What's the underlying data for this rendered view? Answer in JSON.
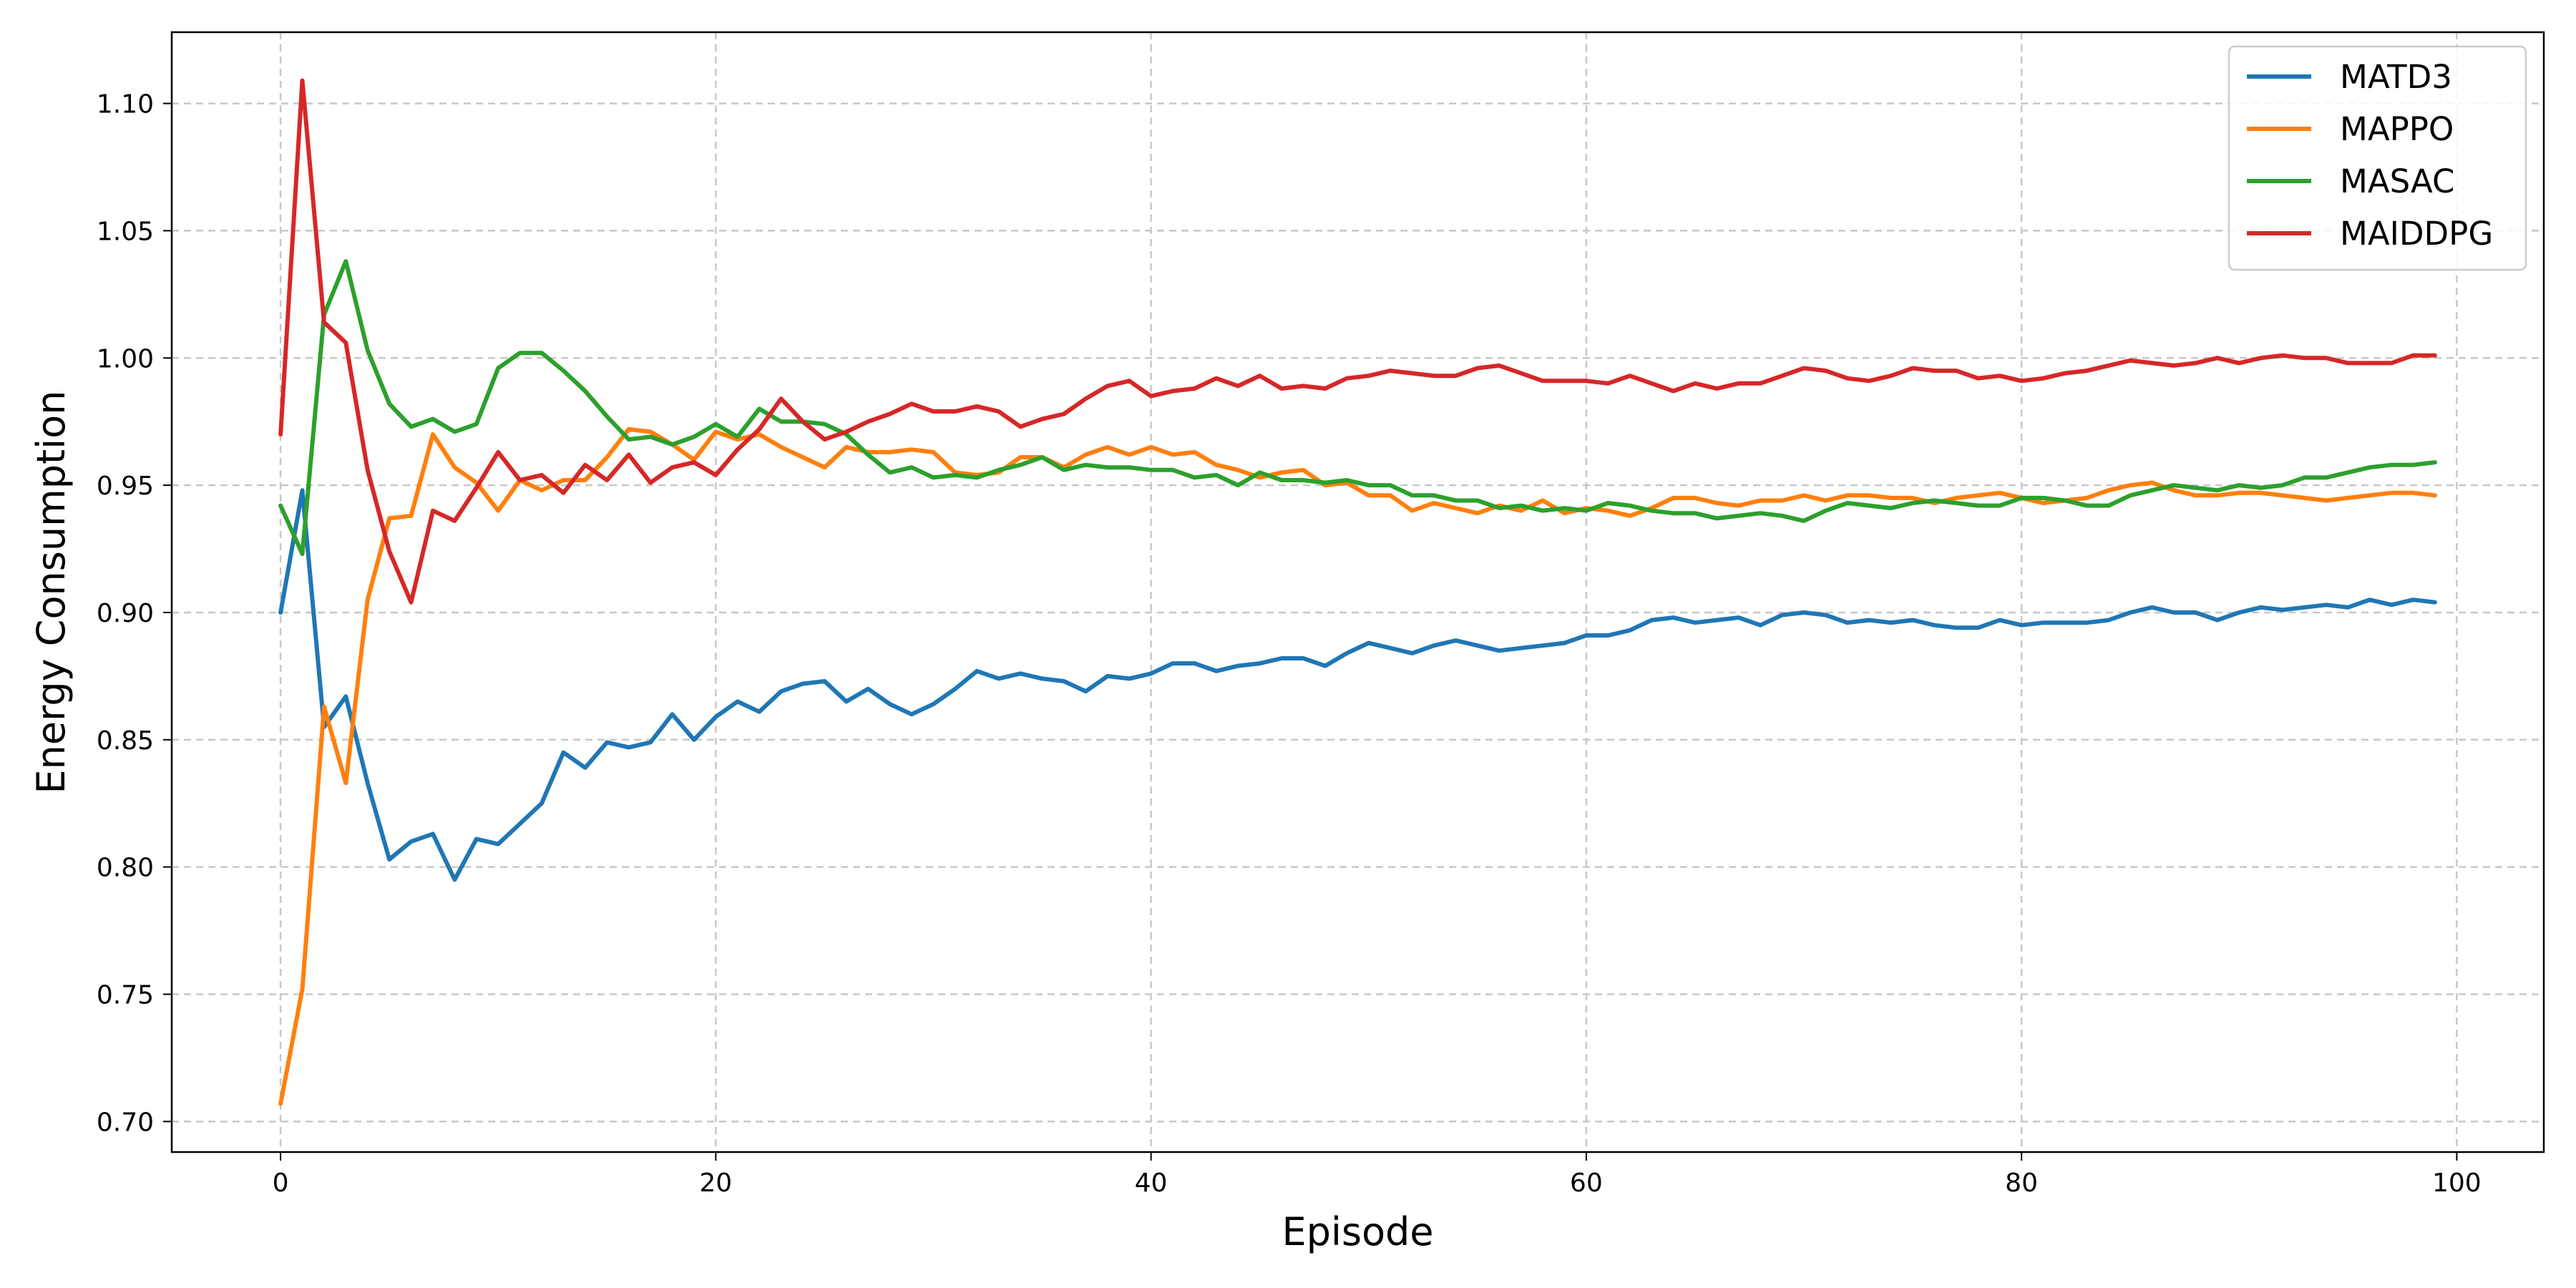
{
  "chart_data": {
    "type": "line",
    "title": "",
    "xlabel": "Episode",
    "ylabel": "Energy Consumption",
    "xlim": [
      -5,
      104
    ],
    "ylim": [
      0.688,
      1.128
    ],
    "xticks": [
      0,
      20,
      40,
      60,
      80,
      100
    ],
    "yticks": [
      0.7,
      0.75,
      0.8,
      0.85,
      0.9,
      0.95,
      1.0,
      1.05,
      1.1
    ],
    "grid": true,
    "legend_position": "top-right",
    "series": [
      {
        "name": "MATD3",
        "color": "#1f77b4",
        "x_start": 0,
        "values": [
          0.9,
          0.948,
          0.855,
          0.867,
          0.833,
          0.803,
          0.81,
          0.813,
          0.795,
          0.811,
          0.809,
          0.817,
          0.825,
          0.845,
          0.839,
          0.849,
          0.847,
          0.849,
          0.86,
          0.85,
          0.859,
          0.865,
          0.861,
          0.869,
          0.872,
          0.873,
          0.865,
          0.87,
          0.864,
          0.86,
          0.864,
          0.87,
          0.877,
          0.874,
          0.876,
          0.874,
          0.873,
          0.869,
          0.875,
          0.874,
          0.876,
          0.88,
          0.88,
          0.877,
          0.879,
          0.88,
          0.882,
          0.882,
          0.879,
          0.884,
          0.888,
          0.886,
          0.884,
          0.887,
          0.889,
          0.887,
          0.885,
          0.886,
          0.887,
          0.888,
          0.891,
          0.891,
          0.893,
          0.897,
          0.898,
          0.896,
          0.897,
          0.898,
          0.895,
          0.899,
          0.9,
          0.899,
          0.896,
          0.897,
          0.896,
          0.897,
          0.895,
          0.894,
          0.894,
          0.897,
          0.895,
          0.896,
          0.896,
          0.896,
          0.897,
          0.9,
          0.902,
          0.9,
          0.9,
          0.897,
          0.9,
          0.902,
          0.901,
          0.902,
          0.903,
          0.902,
          0.905,
          0.903,
          0.905,
          0.904
        ]
      },
      {
        "name": "MAPPO",
        "color": "#ff7f0e",
        "x_start": 0,
        "values": [
          0.707,
          0.752,
          0.863,
          0.833,
          0.905,
          0.937,
          0.938,
          0.97,
          0.957,
          0.951,
          0.94,
          0.952,
          0.948,
          0.952,
          0.952,
          0.961,
          0.972,
          0.971,
          0.966,
          0.96,
          0.971,
          0.968,
          0.97,
          0.965,
          0.961,
          0.957,
          0.965,
          0.963,
          0.963,
          0.964,
          0.963,
          0.955,
          0.954,
          0.955,
          0.961,
          0.961,
          0.957,
          0.962,
          0.965,
          0.962,
          0.965,
          0.962,
          0.963,
          0.958,
          0.956,
          0.953,
          0.955,
          0.956,
          0.95,
          0.951,
          0.946,
          0.946,
          0.94,
          0.943,
          0.941,
          0.939,
          0.942,
          0.94,
          0.944,
          0.939,
          0.941,
          0.94,
          0.938,
          0.941,
          0.945,
          0.945,
          0.943,
          0.942,
          0.944,
          0.944,
          0.946,
          0.944,
          0.946,
          0.946,
          0.945,
          0.945,
          0.943,
          0.945,
          0.946,
          0.947,
          0.945,
          0.943,
          0.944,
          0.945,
          0.948,
          0.95,
          0.951,
          0.948,
          0.946,
          0.946,
          0.947,
          0.947,
          0.946,
          0.945,
          0.944,
          0.945,
          0.946,
          0.947,
          0.947,
          0.946
        ]
      },
      {
        "name": "MASAC",
        "color": "#2ca02c",
        "x_start": 0,
        "values": [
          0.942,
          0.923,
          1.017,
          1.038,
          1.003,
          0.982,
          0.973,
          0.976,
          0.971,
          0.974,
          0.996,
          1.002,
          1.002,
          0.995,
          0.987,
          0.977,
          0.968,
          0.969,
          0.966,
          0.969,
          0.974,
          0.969,
          0.98,
          0.975,
          0.975,
          0.974,
          0.97,
          0.962,
          0.955,
          0.957,
          0.953,
          0.954,
          0.953,
          0.956,
          0.958,
          0.961,
          0.956,
          0.958,
          0.957,
          0.957,
          0.956,
          0.956,
          0.953,
          0.954,
          0.95,
          0.955,
          0.952,
          0.952,
          0.951,
          0.952,
          0.95,
          0.95,
          0.946,
          0.946,
          0.944,
          0.944,
          0.941,
          0.942,
          0.94,
          0.941,
          0.94,
          0.943,
          0.942,
          0.94,
          0.939,
          0.939,
          0.937,
          0.938,
          0.939,
          0.938,
          0.936,
          0.94,
          0.943,
          0.942,
          0.941,
          0.943,
          0.944,
          0.943,
          0.942,
          0.942,
          0.945,
          0.945,
          0.944,
          0.942,
          0.942,
          0.946,
          0.948,
          0.95,
          0.949,
          0.948,
          0.95,
          0.949,
          0.95,
          0.953,
          0.953,
          0.955,
          0.957,
          0.958,
          0.958,
          0.959
        ]
      },
      {
        "name": "MAIDDPG",
        "color": "#d62728",
        "x_start": 0,
        "values": [
          0.97,
          1.109,
          1.014,
          1.006,
          0.956,
          0.924,
          0.904,
          0.94,
          0.936,
          0.949,
          0.963,
          0.952,
          0.954,
          0.947,
          0.958,
          0.952,
          0.962,
          0.951,
          0.957,
          0.959,
          0.954,
          0.964,
          0.972,
          0.984,
          0.975,
          0.968,
          0.971,
          0.975,
          0.978,
          0.982,
          0.979,
          0.979,
          0.981,
          0.979,
          0.973,
          0.976,
          0.978,
          0.984,
          0.989,
          0.991,
          0.985,
          0.987,
          0.988,
          0.992,
          0.989,
          0.993,
          0.988,
          0.989,
          0.988,
          0.992,
          0.993,
          0.995,
          0.994,
          0.993,
          0.993,
          0.996,
          0.997,
          0.994,
          0.991,
          0.991,
          0.991,
          0.99,
          0.993,
          0.99,
          0.987,
          0.99,
          0.988,
          0.99,
          0.99,
          0.993,
          0.996,
          0.995,
          0.992,
          0.991,
          0.993,
          0.996,
          0.995,
          0.995,
          0.992,
          0.993,
          0.991,
          0.992,
          0.994,
          0.995,
          0.997,
          0.999,
          0.998,
          0.997,
          0.998,
          1.0,
          0.998,
          1.0,
          1.001,
          1.0,
          1.0,
          0.998,
          0.998,
          0.998,
          1.001,
          1.001
        ]
      }
    ]
  }
}
